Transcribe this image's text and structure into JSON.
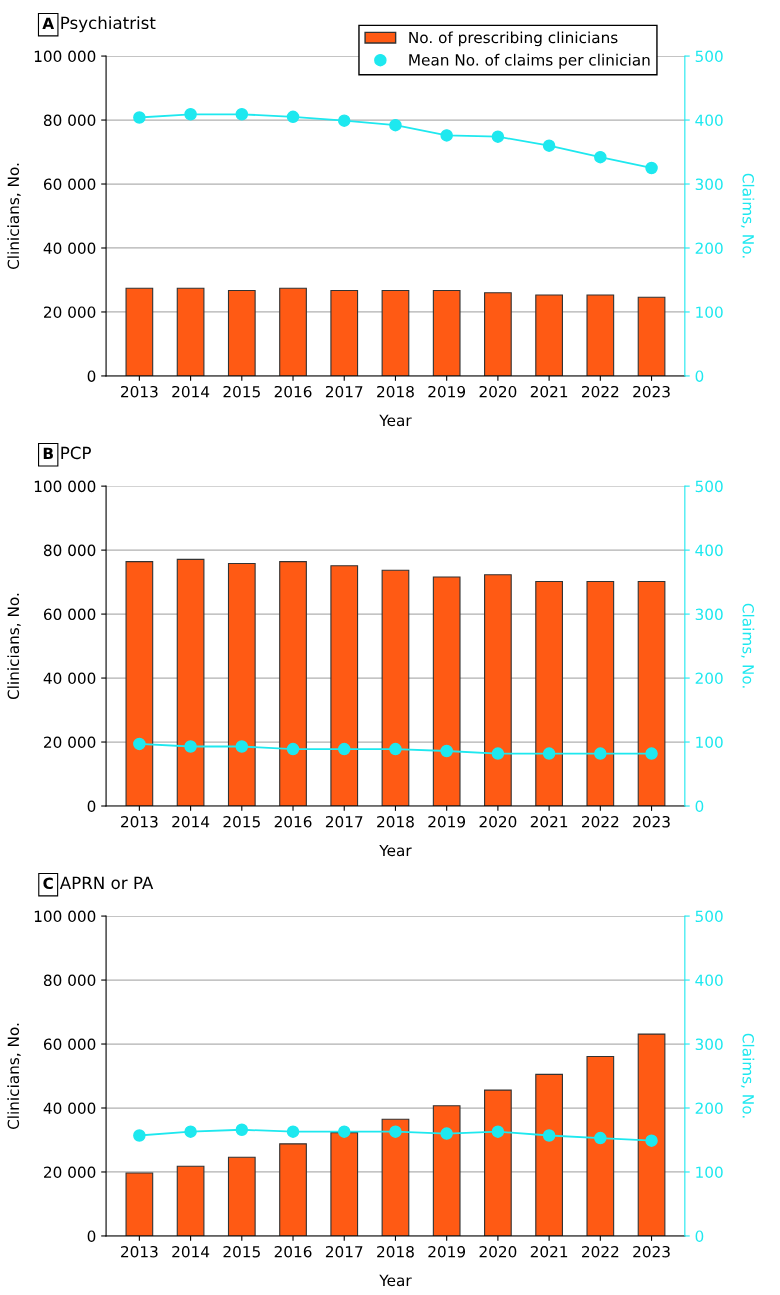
{
  "chart_data": [
    {
      "type": "bar",
      "title": "Psychiatrist",
      "annotations": [
        "A"
      ],
      "xlabel": "Year",
      "ylabel": "Clinicians, No.",
      "y2label": "Claims, No.",
      "categories": [
        "2013",
        "2014",
        "2015",
        "2016",
        "2017",
        "2018",
        "2019",
        "2020",
        "2021",
        "2022",
        "2023"
      ],
      "series": [
        {
          "name": "No. of prescribing clinicians",
          "color": "#ff5a14",
          "values": [
            27400,
            27400,
            26700,
            27400,
            26700,
            26700,
            26700,
            26000,
            25300,
            25300,
            24600
          ]
        },
        {
          "name": "Mean No. of claims per clinician",
          "type": "line",
          "axis": "y2",
          "color": "#1ee8ef",
          "values": [
            404,
            409,
            409,
            405,
            399,
            392,
            376,
            374,
            360,
            342,
            325
          ]
        }
      ],
      "ylim": [
        0,
        100000
      ],
      "yticks": [
        0,
        {
          "value": 20000,
          "label": "20 000"
        },
        {
          "value": 40000,
          "label": "40 000"
        },
        {
          "value": 60000,
          "label": "60 000"
        },
        {
          "value": 80000,
          "label": "80 000"
        },
        {
          "value": 100000,
          "label": "100 000"
        }
      ],
      "y2lim": [
        0,
        500
      ],
      "y2ticks": [
        0,
        100,
        200,
        300,
        400,
        500
      ],
      "grid": "y",
      "legend": "top right",
      "marker": "circle",
      "line_style": "solid"
    },
    {
      "type": "bar",
      "title": "PCP",
      "annotations": [
        "B"
      ],
      "xlabel": "Year",
      "ylabel": "Clinicians, No.",
      "y2label": "Claims, No.",
      "categories": [
        "2013",
        "2014",
        "2015",
        "2016",
        "2017",
        "2018",
        "2019",
        "2020",
        "2021",
        "2022",
        "2023"
      ],
      "series": [
        {
          "color": "#ff5a14",
          "values": [
            76400,
            77100,
            75800,
            76400,
            75100,
            73700,
            71600,
            72300,
            70200,
            70200,
            70200
          ]
        },
        {
          "type": "line",
          "axis": "y2",
          "color": "#1ee8ef",
          "values": [
            97,
            93,
            93,
            89,
            89,
            89,
            86,
            82,
            82,
            82,
            82
          ]
        }
      ],
      "ylim": [
        0,
        100000
      ],
      "yticks": [
        0,
        {
          "value": 20000,
          "label": "20 000"
        },
        {
          "value": 40000,
          "label": "40 000"
        },
        {
          "value": 60000,
          "label": "60 000"
        },
        {
          "value": 80000,
          "label": "80 000"
        },
        {
          "value": 100000,
          "label": "100 000"
        }
      ],
      "y2lim": [
        0,
        500
      ],
      "y2ticks": [
        0,
        100,
        200,
        300,
        400,
        500
      ],
      "grid": "y",
      "marker": "circle",
      "line_style": "solid"
    },
    {
      "type": "bar",
      "title": "APRN or PA",
      "annotations": [
        "C"
      ],
      "xlabel": "Year",
      "ylabel": "Clinicians, No.",
      "y2label": "Claims, No.",
      "categories": [
        "2013",
        "2014",
        "2015",
        "2016",
        "2017",
        "2018",
        "2019",
        "2020",
        "2021",
        "2022",
        "2023"
      ],
      "series": [
        {
          "color": "#ff5a14",
          "values": [
            19700,
            21800,
            24600,
            28800,
            32300,
            36500,
            40700,
            45600,
            50500,
            56100,
            63100
          ]
        },
        {
          "type": "line",
          "axis": "y2",
          "color": "#1ee8ef",
          "values": [
            157,
            163,
            166,
            163,
            163,
            163,
            160,
            163,
            157,
            153,
            149
          ]
        }
      ],
      "ylim": [
        0,
        100000
      ],
      "yticks": [
        0,
        {
          "value": 20000,
          "label": "20 000"
        },
        {
          "value": 40000,
          "label": "40 000"
        },
        {
          "value": 60000,
          "label": "60 000"
        },
        {
          "value": 80000,
          "label": "80 000"
        },
        {
          "value": 100000,
          "label": "100 000"
        }
      ],
      "y2lim": [
        0,
        500
      ],
      "y2ticks": [
        0,
        100,
        200,
        300,
        400,
        500
      ],
      "grid": "y",
      "marker": "circle",
      "line_style": "solid"
    }
  ]
}
